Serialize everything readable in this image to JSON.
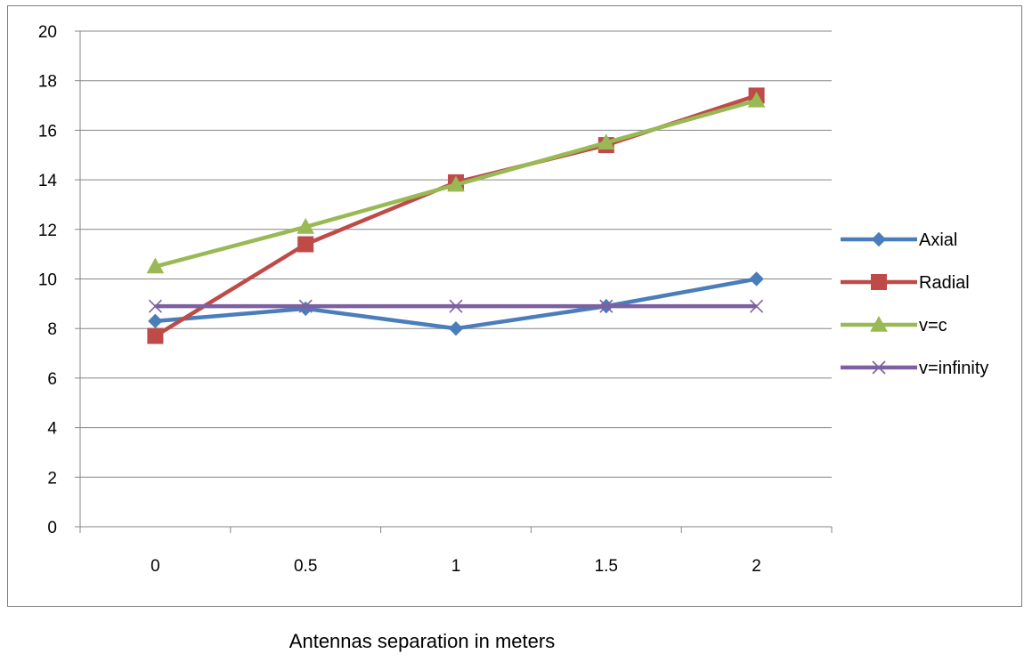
{
  "chart_data": {
    "type": "line",
    "categories": [
      "0",
      "0.5",
      "1",
      "1.5",
      "2"
    ],
    "ylim": [
      0,
      20
    ],
    "y_ticks": [
      0,
      2,
      4,
      6,
      8,
      10,
      12,
      14,
      16,
      18,
      20
    ],
    "title": "",
    "xlabel": "Antennas separation in meters",
    "ylabel": "",
    "grid": "horizontal",
    "legend_position": "right",
    "series": [
      {
        "name": "Axial",
        "values": [
          8.3,
          8.8,
          8.0,
          8.9,
          10.0
        ],
        "color": "#4a7ebb",
        "marker": "diamond"
      },
      {
        "name": "Radial",
        "values": [
          7.7,
          11.4,
          13.9,
          15.4,
          17.4
        ],
        "color": "#be4b48",
        "marker": "square"
      },
      {
        "name": "v=c",
        "values": [
          10.5,
          12.1,
          13.8,
          15.5,
          17.2
        ],
        "color": "#98b954",
        "marker": "triangle"
      },
      {
        "name": "v=infinity",
        "values": [
          8.9,
          8.9,
          8.9,
          8.9,
          8.9
        ],
        "color": "#7d60a0",
        "marker": "x"
      }
    ]
  }
}
